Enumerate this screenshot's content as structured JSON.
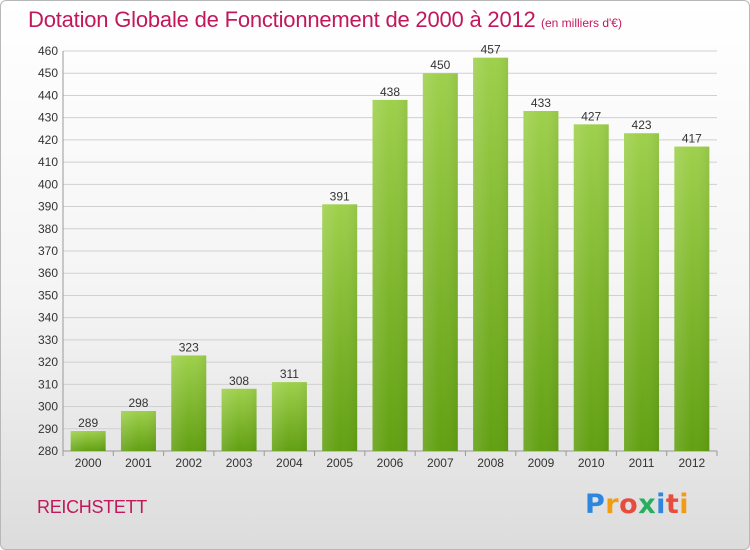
{
  "header": {
    "title": "Dotation Globale de Fonctionnement de 2000 à 2012",
    "unit": "(en milliers d'€)"
  },
  "footer": {
    "commune": "REICHSTETT",
    "brand": "Proxiti"
  },
  "colors": {
    "bar_light": "#9ed04c",
    "bar_dark": "#62a012",
    "title": "#c2185b",
    "grid": "#d0d0d0"
  },
  "chart_data": {
    "type": "bar",
    "title": "Dotation Globale de Fonctionnement de 2000 à 2012",
    "subtitle": "(en milliers d'€)",
    "categories": [
      "2000",
      "2001",
      "2002",
      "2003",
      "2004",
      "2005",
      "2006",
      "2007",
      "2008",
      "2009",
      "2010",
      "2011",
      "2012"
    ],
    "values": [
      289,
      298,
      323,
      308,
      311,
      391,
      438,
      450,
      457,
      433,
      427,
      423,
      417
    ],
    "ylim": [
      280,
      460
    ],
    "yticks": [
      280,
      290,
      300,
      310,
      320,
      330,
      340,
      350,
      360,
      370,
      380,
      390,
      400,
      410,
      420,
      430,
      440,
      450,
      460
    ],
    "grid": true,
    "xlabel": "",
    "ylabel": ""
  }
}
